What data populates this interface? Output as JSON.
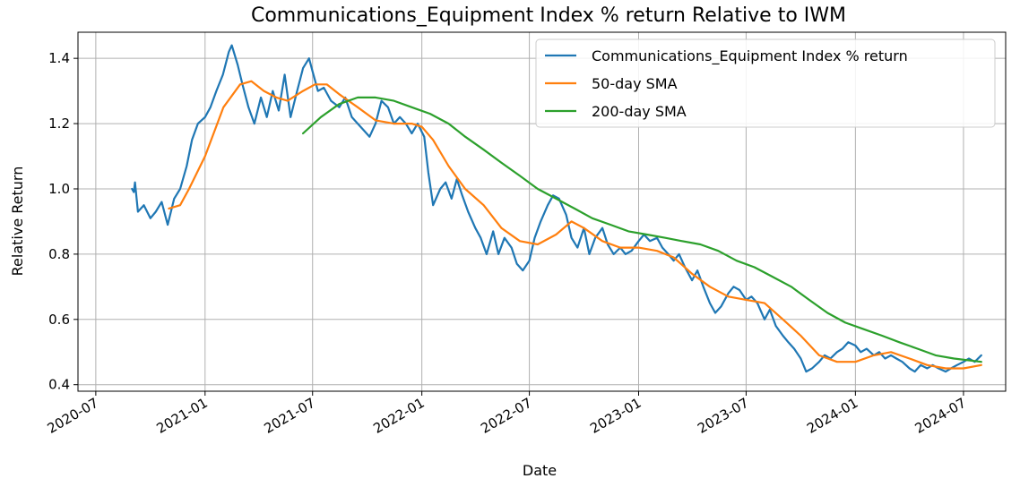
{
  "chart_data": {
    "type": "line",
    "title": "Communications_Equipment Index % return Relative to IWM",
    "xlabel": "Date",
    "ylabel": "Relative Return",
    "xlim": [
      "2020-06-01",
      "2024-09-10"
    ],
    "ylim": [
      0.38,
      1.48
    ],
    "x_ticks": [
      "2020-07",
      "2021-01",
      "2021-07",
      "2022-01",
      "2022-07",
      "2023-01",
      "2023-07",
      "2024-01",
      "2024-07"
    ],
    "y_ticks": [
      0.4,
      0.6,
      0.8,
      1.0,
      1.2,
      1.4
    ],
    "y_tick_labels": [
      "0.4",
      "0.6",
      "0.8",
      "1.0",
      "1.2",
      "1.4"
    ],
    "grid": true,
    "legend_position": "top-right",
    "series": [
      {
        "name": "Communications_Equipment Index % return",
        "color": "#1f77b4",
        "points": [
          [
            "2020-08-31",
            1.0
          ],
          [
            "2020-09-03",
            0.99
          ],
          [
            "2020-09-05",
            1.02
          ],
          [
            "2020-09-10",
            0.93
          ],
          [
            "2020-09-20",
            0.95
          ],
          [
            "2020-10-01",
            0.91
          ],
          [
            "2020-10-10",
            0.93
          ],
          [
            "2020-10-20",
            0.96
          ],
          [
            "2020-10-30",
            0.89
          ],
          [
            "2020-11-10",
            0.97
          ],
          [
            "2020-11-20",
            1.0
          ],
          [
            "2020-12-01",
            1.07
          ],
          [
            "2020-12-10",
            1.15
          ],
          [
            "2020-12-20",
            1.2
          ],
          [
            "2021-01-01",
            1.22
          ],
          [
            "2021-01-10",
            1.25
          ],
          [
            "2021-01-20",
            1.3
          ],
          [
            "2021-01-31",
            1.35
          ],
          [
            "2021-02-10",
            1.42
          ],
          [
            "2021-02-15",
            1.44
          ],
          [
            "2021-02-25",
            1.38
          ],
          [
            "2021-03-05",
            1.32
          ],
          [
            "2021-03-15",
            1.25
          ],
          [
            "2021-03-25",
            1.2
          ],
          [
            "2021-04-05",
            1.28
          ],
          [
            "2021-04-15",
            1.22
          ],
          [
            "2021-04-25",
            1.3
          ],
          [
            "2021-05-05",
            1.24
          ],
          [
            "2021-05-15",
            1.35
          ],
          [
            "2021-05-25",
            1.22
          ],
          [
            "2021-06-05",
            1.3
          ],
          [
            "2021-06-15",
            1.37
          ],
          [
            "2021-06-25",
            1.4
          ],
          [
            "2021-07-01",
            1.36
          ],
          [
            "2021-07-10",
            1.3
          ],
          [
            "2021-07-20",
            1.31
          ],
          [
            "2021-08-01",
            1.27
          ],
          [
            "2021-08-15",
            1.25
          ],
          [
            "2021-08-25",
            1.28
          ],
          [
            "2021-09-05",
            1.22
          ],
          [
            "2021-09-15",
            1.2
          ],
          [
            "2021-09-25",
            1.18
          ],
          [
            "2021-10-05",
            1.16
          ],
          [
            "2021-10-15",
            1.2
          ],
          [
            "2021-10-25",
            1.27
          ],
          [
            "2021-11-05",
            1.25
          ],
          [
            "2021-11-15",
            1.2
          ],
          [
            "2021-11-25",
            1.22
          ],
          [
            "2021-12-05",
            1.2
          ],
          [
            "2021-12-15",
            1.17
          ],
          [
            "2021-12-25",
            1.2
          ],
          [
            "2022-01-05",
            1.16
          ],
          [
            "2022-01-12",
            1.05
          ],
          [
            "2022-01-20",
            0.95
          ],
          [
            "2022-02-01",
            1.0
          ],
          [
            "2022-02-10",
            1.02
          ],
          [
            "2022-02-20",
            0.97
          ],
          [
            "2022-03-01",
            1.03
          ],
          [
            "2022-03-10",
            0.98
          ],
          [
            "2022-03-20",
            0.93
          ],
          [
            "2022-04-01",
            0.88
          ],
          [
            "2022-04-10",
            0.85
          ],
          [
            "2022-04-20",
            0.8
          ],
          [
            "2022-05-01",
            0.87
          ],
          [
            "2022-05-10",
            0.8
          ],
          [
            "2022-05-20",
            0.85
          ],
          [
            "2022-06-01",
            0.82
          ],
          [
            "2022-06-10",
            0.77
          ],
          [
            "2022-06-20",
            0.75
          ],
          [
            "2022-07-01",
            0.78
          ],
          [
            "2022-07-10",
            0.85
          ],
          [
            "2022-07-20",
            0.9
          ],
          [
            "2022-08-01",
            0.95
          ],
          [
            "2022-08-10",
            0.98
          ],
          [
            "2022-08-20",
            0.97
          ],
          [
            "2022-09-01",
            0.92
          ],
          [
            "2022-09-10",
            0.85
          ],
          [
            "2022-09-20",
            0.82
          ],
          [
            "2022-10-01",
            0.88
          ],
          [
            "2022-10-10",
            0.8
          ],
          [
            "2022-10-20",
            0.85
          ],
          [
            "2022-11-01",
            0.88
          ],
          [
            "2022-11-10",
            0.83
          ],
          [
            "2022-11-20",
            0.8
          ],
          [
            "2022-12-01",
            0.82
          ],
          [
            "2022-12-10",
            0.8
          ],
          [
            "2022-12-20",
            0.81
          ],
          [
            "2023-01-01",
            0.84
          ],
          [
            "2023-01-10",
            0.86
          ],
          [
            "2023-01-20",
            0.84
          ],
          [
            "2023-02-01",
            0.85
          ],
          [
            "2023-02-10",
            0.82
          ],
          [
            "2023-02-20",
            0.8
          ],
          [
            "2023-03-01",
            0.78
          ],
          [
            "2023-03-10",
            0.8
          ],
          [
            "2023-03-20",
            0.76
          ],
          [
            "2023-04-01",
            0.72
          ],
          [
            "2023-04-10",
            0.75
          ],
          [
            "2023-04-20",
            0.7
          ],
          [
            "2023-05-01",
            0.65
          ],
          [
            "2023-05-10",
            0.62
          ],
          [
            "2023-05-20",
            0.64
          ],
          [
            "2023-06-01",
            0.68
          ],
          [
            "2023-06-10",
            0.7
          ],
          [
            "2023-06-20",
            0.69
          ],
          [
            "2023-07-01",
            0.66
          ],
          [
            "2023-07-10",
            0.67
          ],
          [
            "2023-07-20",
            0.65
          ],
          [
            "2023-08-01",
            0.6
          ],
          [
            "2023-08-10",
            0.63
          ],
          [
            "2023-08-20",
            0.58
          ],
          [
            "2023-09-01",
            0.55
          ],
          [
            "2023-09-10",
            0.53
          ],
          [
            "2023-09-20",
            0.51
          ],
          [
            "2023-10-01",
            0.48
          ],
          [
            "2023-10-10",
            0.44
          ],
          [
            "2023-10-20",
            0.45
          ],
          [
            "2023-11-01",
            0.47
          ],
          [
            "2023-11-10",
            0.49
          ],
          [
            "2023-11-20",
            0.48
          ],
          [
            "2023-12-01",
            0.5
          ],
          [
            "2023-12-10",
            0.51
          ],
          [
            "2023-12-20",
            0.53
          ],
          [
            "2024-01-01",
            0.52
          ],
          [
            "2024-01-10",
            0.5
          ],
          [
            "2024-01-20",
            0.51
          ],
          [
            "2024-02-01",
            0.49
          ],
          [
            "2024-02-10",
            0.5
          ],
          [
            "2024-02-20",
            0.48
          ],
          [
            "2024-03-01",
            0.49
          ],
          [
            "2024-03-10",
            0.48
          ],
          [
            "2024-03-20",
            0.47
          ],
          [
            "2024-04-01",
            0.45
          ],
          [
            "2024-04-10",
            0.44
          ],
          [
            "2024-04-20",
            0.46
          ],
          [
            "2024-05-01",
            0.45
          ],
          [
            "2024-05-10",
            0.46
          ],
          [
            "2024-05-20",
            0.45
          ],
          [
            "2024-06-01",
            0.44
          ],
          [
            "2024-06-10",
            0.45
          ],
          [
            "2024-06-20",
            0.46
          ],
          [
            "2024-07-01",
            0.47
          ],
          [
            "2024-07-10",
            0.48
          ],
          [
            "2024-07-20",
            0.47
          ],
          [
            "2024-07-31",
            0.49
          ]
        ]
      },
      {
        "name": "50-day SMA",
        "color": "#ff7f0e",
        "points": [
          [
            "2020-11-01",
            0.94
          ],
          [
            "2020-11-20",
            0.95
          ],
          [
            "2020-12-05",
            1.0
          ],
          [
            "2021-01-01",
            1.1
          ],
          [
            "2021-02-01",
            1.25
          ],
          [
            "2021-03-01",
            1.32
          ],
          [
            "2021-03-20",
            1.33
          ],
          [
            "2021-04-10",
            1.3
          ],
          [
            "2021-05-01",
            1.28
          ],
          [
            "2021-05-20",
            1.27
          ],
          [
            "2021-06-15",
            1.3
          ],
          [
            "2021-07-05",
            1.32
          ],
          [
            "2021-07-25",
            1.32
          ],
          [
            "2021-08-15",
            1.29
          ],
          [
            "2021-09-15",
            1.25
          ],
          [
            "2021-10-15",
            1.21
          ],
          [
            "2021-11-15",
            1.2
          ],
          [
            "2021-12-15",
            1.2
          ],
          [
            "2022-01-01",
            1.19
          ],
          [
            "2022-01-20",
            1.15
          ],
          [
            "2022-02-15",
            1.07
          ],
          [
            "2022-03-15",
            1.0
          ],
          [
            "2022-04-15",
            0.95
          ],
          [
            "2022-05-15",
            0.88
          ],
          [
            "2022-06-15",
            0.84
          ],
          [
            "2022-07-15",
            0.83
          ],
          [
            "2022-08-15",
            0.86
          ],
          [
            "2022-09-10",
            0.9
          ],
          [
            "2022-10-01",
            0.88
          ],
          [
            "2022-11-01",
            0.84
          ],
          [
            "2022-12-01",
            0.82
          ],
          [
            "2023-01-01",
            0.82
          ],
          [
            "2023-02-01",
            0.81
          ],
          [
            "2023-03-01",
            0.79
          ],
          [
            "2023-04-01",
            0.74
          ],
          [
            "2023-05-01",
            0.7
          ],
          [
            "2023-06-01",
            0.67
          ],
          [
            "2023-07-01",
            0.66
          ],
          [
            "2023-08-01",
            0.65
          ],
          [
            "2023-09-01",
            0.6
          ],
          [
            "2023-10-01",
            0.55
          ],
          [
            "2023-11-01",
            0.49
          ],
          [
            "2023-12-01",
            0.47
          ],
          [
            "2024-01-01",
            0.47
          ],
          [
            "2024-02-01",
            0.49
          ],
          [
            "2024-03-01",
            0.5
          ],
          [
            "2024-04-01",
            0.48
          ],
          [
            "2024-05-01",
            0.46
          ],
          [
            "2024-06-01",
            0.45
          ],
          [
            "2024-07-01",
            0.45
          ],
          [
            "2024-07-31",
            0.46
          ]
        ]
      },
      {
        "name": "200-day SMA",
        "color": "#2ca02c",
        "points": [
          [
            "2021-06-15",
            1.17
          ],
          [
            "2021-07-15",
            1.22
          ],
          [
            "2021-08-15",
            1.26
          ],
          [
            "2021-09-15",
            1.28
          ],
          [
            "2021-10-15",
            1.28
          ],
          [
            "2021-11-15",
            1.27
          ],
          [
            "2021-12-15",
            1.25
          ],
          [
            "2022-01-15",
            1.23
          ],
          [
            "2022-02-15",
            1.2
          ],
          [
            "2022-03-15",
            1.16
          ],
          [
            "2022-04-15",
            1.12
          ],
          [
            "2022-05-15",
            1.08
          ],
          [
            "2022-06-15",
            1.04
          ],
          [
            "2022-07-15",
            1.0
          ],
          [
            "2022-08-15",
            0.97
          ],
          [
            "2022-09-15",
            0.94
          ],
          [
            "2022-10-15",
            0.91
          ],
          [
            "2022-11-15",
            0.89
          ],
          [
            "2022-12-15",
            0.87
          ],
          [
            "2023-01-15",
            0.86
          ],
          [
            "2023-02-15",
            0.85
          ],
          [
            "2023-03-15",
            0.84
          ],
          [
            "2023-04-15",
            0.83
          ],
          [
            "2023-05-15",
            0.81
          ],
          [
            "2023-06-15",
            0.78
          ],
          [
            "2023-07-15",
            0.76
          ],
          [
            "2023-08-15",
            0.73
          ],
          [
            "2023-09-15",
            0.7
          ],
          [
            "2023-10-15",
            0.66
          ],
          [
            "2023-11-15",
            0.62
          ],
          [
            "2023-12-15",
            0.59
          ],
          [
            "2024-01-15",
            0.57
          ],
          [
            "2024-02-15",
            0.55
          ],
          [
            "2024-03-15",
            0.53
          ],
          [
            "2024-04-15",
            0.51
          ],
          [
            "2024-05-15",
            0.49
          ],
          [
            "2024-06-15",
            0.48
          ],
          [
            "2024-07-31",
            0.47
          ]
        ]
      }
    ]
  }
}
